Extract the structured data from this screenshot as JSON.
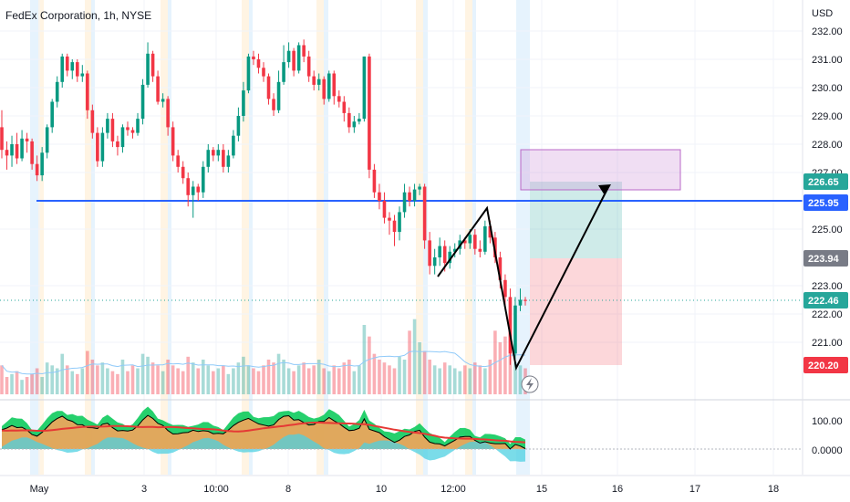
{
  "chart_data": {
    "type": "candlestick",
    "title": "FedEx Corporation, 1h, NYSE",
    "currency_label": "USD",
    "y_axis": {
      "ticks": [
        "232.00",
        "231.00",
        "230.00",
        "229.00",
        "228.00",
        "227.00",
        "225.00",
        "223.00",
        "222.00",
        "221.00"
      ],
      "range": [
        220.0,
        232.3
      ]
    },
    "x_axis": {
      "ticks": [
        "May",
        "3",
        "10:00",
        "8",
        "10",
        "12:00",
        "15",
        "16",
        "17",
        "18"
      ]
    },
    "price_tags": [
      {
        "label": "226.65",
        "value": 226.65,
        "color": "#26a69a"
      },
      {
        "label": "225.95",
        "value": 225.95,
        "color": "#2962ff"
      },
      {
        "label": "223.94",
        "value": 223.94,
        "color": "#787b86"
      },
      {
        "label": "222.46",
        "value": 222.46,
        "color": "#26a69a"
      },
      {
        "label": "220.20",
        "value": 220.2,
        "color": "#f23645"
      }
    ],
    "horizontal_line": {
      "value": 225.95,
      "color": "#2962ff"
    },
    "current_price_line": {
      "value": 222.46,
      "color": "#26a69a"
    },
    "candles": [
      [
        228.6,
        227.8,
        229.2,
        227.5
      ],
      [
        227.8,
        227.6,
        228.1,
        227.1
      ],
      [
        227.6,
        228.0,
        228.3,
        227.2
      ],
      [
        228.0,
        227.5,
        228.4,
        227.3
      ],
      [
        227.5,
        228.2,
        228.5,
        227.4
      ],
      [
        228.2,
        228.1,
        228.4,
        227.7
      ],
      [
        228.1,
        227.3,
        228.2,
        227.1
      ],
      [
        227.3,
        226.9,
        227.6,
        226.7
      ],
      [
        226.9,
        227.7,
        227.9,
        226.7
      ],
      [
        227.7,
        228.6,
        228.7,
        227.5
      ],
      [
        228.6,
        229.5,
        229.6,
        228.4
      ],
      [
        229.5,
        230.2,
        230.4,
        229.3
      ],
      [
        230.2,
        231.1,
        231.2,
        230.0
      ],
      [
        231.1,
        230.6,
        231.2,
        230.4
      ],
      [
        230.6,
        230.9,
        231.0,
        230.3
      ],
      [
        230.9,
        230.4,
        231.0,
        230.2
      ],
      [
        230.4,
        230.5,
        230.8,
        230.2
      ],
      [
        230.5,
        229.2,
        230.6,
        228.9
      ],
      [
        229.2,
        228.4,
        229.4,
        228.2
      ],
      [
        228.4,
        227.4,
        228.6,
        227.2
      ],
      [
        227.4,
        228.4,
        228.6,
        227.2
      ],
      [
        228.4,
        228.9,
        229.1,
        228.2
      ],
      [
        228.9,
        228.1,
        229.1,
        227.9
      ],
      [
        228.1,
        227.9,
        228.3,
        227.6
      ],
      [
        227.9,
        228.6,
        228.7,
        227.7
      ],
      [
        228.6,
        228.5,
        228.8,
        228.3
      ],
      [
        228.5,
        228.4,
        228.6,
        228.2
      ],
      [
        228.4,
        228.9,
        229.1,
        228.3
      ],
      [
        228.9,
        230.1,
        230.3,
        228.7
      ],
      [
        230.1,
        231.2,
        231.6,
        230.0
      ],
      [
        231.2,
        230.4,
        231.3,
        230.2
      ],
      [
        230.4,
        229.5,
        230.6,
        229.4
      ],
      [
        229.5,
        229.6,
        229.8,
        229.3
      ],
      [
        229.6,
        228.6,
        229.7,
        228.3
      ],
      [
        228.6,
        227.6,
        228.8,
        227.4
      ],
      [
        227.6,
        227.2,
        227.8,
        227.0
      ],
      [
        227.2,
        226.8,
        227.4,
        226.6
      ],
      [
        226.8,
        226.2,
        227.0,
        225.8
      ],
      [
        226.2,
        226.5,
        226.7,
        225.4
      ],
      [
        226.5,
        226.3,
        226.6,
        226.0
      ],
      [
        226.3,
        227.2,
        227.4,
        226.1
      ],
      [
        227.2,
        227.8,
        228.0,
        227.0
      ],
      [
        227.8,
        227.6,
        227.9,
        227.4
      ],
      [
        227.6,
        227.8,
        228.0,
        227.4
      ],
      [
        227.8,
        227.2,
        228.0,
        227.0
      ],
      [
        227.2,
        227.6,
        227.8,
        227.0
      ],
      [
        227.6,
        228.3,
        228.5,
        227.5
      ],
      [
        228.3,
        229.0,
        229.3,
        228.1
      ],
      [
        229.0,
        229.9,
        230.2,
        228.8
      ],
      [
        229.9,
        231.1,
        231.2,
        229.8
      ],
      [
        231.1,
        231.0,
        231.3,
        230.8
      ],
      [
        231.0,
        230.7,
        231.2,
        230.5
      ],
      [
        230.7,
        230.4,
        230.9,
        230.2
      ],
      [
        230.4,
        229.6,
        230.5,
        229.4
      ],
      [
        229.6,
        229.2,
        229.8,
        229.0
      ],
      [
        229.2,
        230.2,
        230.6,
        229.1
      ],
      [
        230.2,
        230.9,
        231.5,
        230.1
      ],
      [
        230.9,
        231.3,
        231.6,
        230.7
      ],
      [
        231.3,
        230.6,
        231.4,
        230.4
      ],
      [
        230.6,
        231.5,
        231.6,
        230.5
      ],
      [
        231.5,
        231.1,
        231.7,
        230.9
      ],
      [
        231.1,
        230.4,
        231.3,
        230.2
      ],
      [
        230.4,
        230.1,
        230.6,
        229.9
      ],
      [
        230.1,
        230.3,
        230.5,
        229.9
      ],
      [
        230.3,
        229.6,
        230.4,
        229.4
      ],
      [
        229.6,
        230.5,
        230.6,
        229.5
      ],
      [
        230.5,
        229.7,
        230.6,
        229.4
      ],
      [
        229.7,
        229.5,
        229.9,
        229.3
      ],
      [
        229.5,
        229.1,
        229.7,
        228.8
      ],
      [
        229.1,
        228.6,
        229.3,
        228.4
      ],
      [
        228.6,
        228.8,
        229.0,
        228.4
      ],
      [
        228.8,
        228.9,
        229.1,
        228.7
      ],
      [
        228.9,
        231.1,
        231.1,
        228.8
      ],
      [
        231.1,
        227.1,
        231.2,
        226.8
      ],
      [
        227.1,
        226.3,
        227.3,
        226.1
      ],
      [
        226.3,
        226.0,
        226.6,
        225.7
      ],
      [
        226.0,
        225.4,
        226.3,
        225.2
      ],
      [
        225.4,
        225.3,
        225.6,
        224.8
      ],
      [
        225.3,
        224.9,
        225.5,
        224.4
      ],
      [
        224.9,
        225.6,
        225.8,
        224.6
      ],
      [
        225.6,
        226.3,
        226.6,
        225.4
      ],
      [
        226.3,
        226.0,
        226.5,
        225.8
      ],
      [
        226.0,
        226.4,
        226.6,
        225.8
      ],
      [
        226.4,
        226.5,
        226.6,
        226.2
      ],
      [
        226.5,
        224.6,
        226.6,
        224.3
      ],
      [
        224.6,
        223.7,
        224.9,
        223.4
      ],
      [
        223.7,
        224.0,
        224.3,
        223.4
      ],
      [
        224.0,
        224.4,
        224.7,
        223.7
      ],
      [
        224.4,
        223.8,
        224.6,
        223.5
      ],
      [
        223.8,
        224.2,
        224.4,
        223.6
      ],
      [
        224.2,
        224.3,
        224.5,
        224.0
      ],
      [
        224.3,
        224.6,
        224.8,
        224.1
      ],
      [
        224.6,
        224.5,
        224.7,
        224.3
      ],
      [
        224.5,
        224.8,
        225.0,
        224.3
      ],
      [
        224.8,
        224.3,
        225.0,
        224.1
      ],
      [
        224.3,
        224.2,
        224.6,
        224.0
      ],
      [
        224.2,
        225.1,
        225.3,
        224.1
      ],
      [
        225.1,
        224.7,
        225.3,
        224.5
      ],
      [
        224.7,
        224.0,
        224.9,
        223.8
      ],
      [
        224.0,
        223.2,
        224.2,
        222.9
      ],
      [
        223.2,
        222.6,
        223.4,
        222.3
      ],
      [
        222.6,
        220.6,
        222.9,
        220.2
      ],
      [
        220.6,
        222.3,
        222.6,
        220.4
      ],
      [
        222.3,
        222.5,
        222.9,
        222.1
      ],
      [
        222.5,
        222.46,
        222.6,
        222.3
      ]
    ],
    "volumes": [
      10,
      6,
      7,
      8,
      5,
      6,
      7,
      9,
      6,
      11,
      10,
      9,
      14,
      10,
      8,
      7,
      9,
      15,
      12,
      10,
      11,
      9,
      8,
      7,
      12,
      8,
      10,
      9,
      14,
      13,
      11,
      10,
      8,
      12,
      10,
      9,
      8,
      13,
      11,
      9,
      12,
      10,
      8,
      9,
      10,
      7,
      9,
      11,
      13,
      10,
      9,
      8,
      10,
      12,
      11,
      14,
      12,
      9,
      8,
      10,
      11,
      9,
      10,
      12,
      9,
      8,
      10,
      9,
      11,
      12,
      8,
      10,
      24,
      20,
      14,
      12,
      11,
      10,
      9,
      13,
      12,
      22,
      26,
      18,
      15,
      12,
      10,
      9,
      11,
      10,
      9,
      8,
      10,
      9,
      11,
      10,
      9,
      12,
      22,
      18,
      20,
      14,
      11,
      10,
      9
    ],
    "indicator": {
      "ticks": [
        "100.00",
        "0.0000"
      ]
    }
  }
}
